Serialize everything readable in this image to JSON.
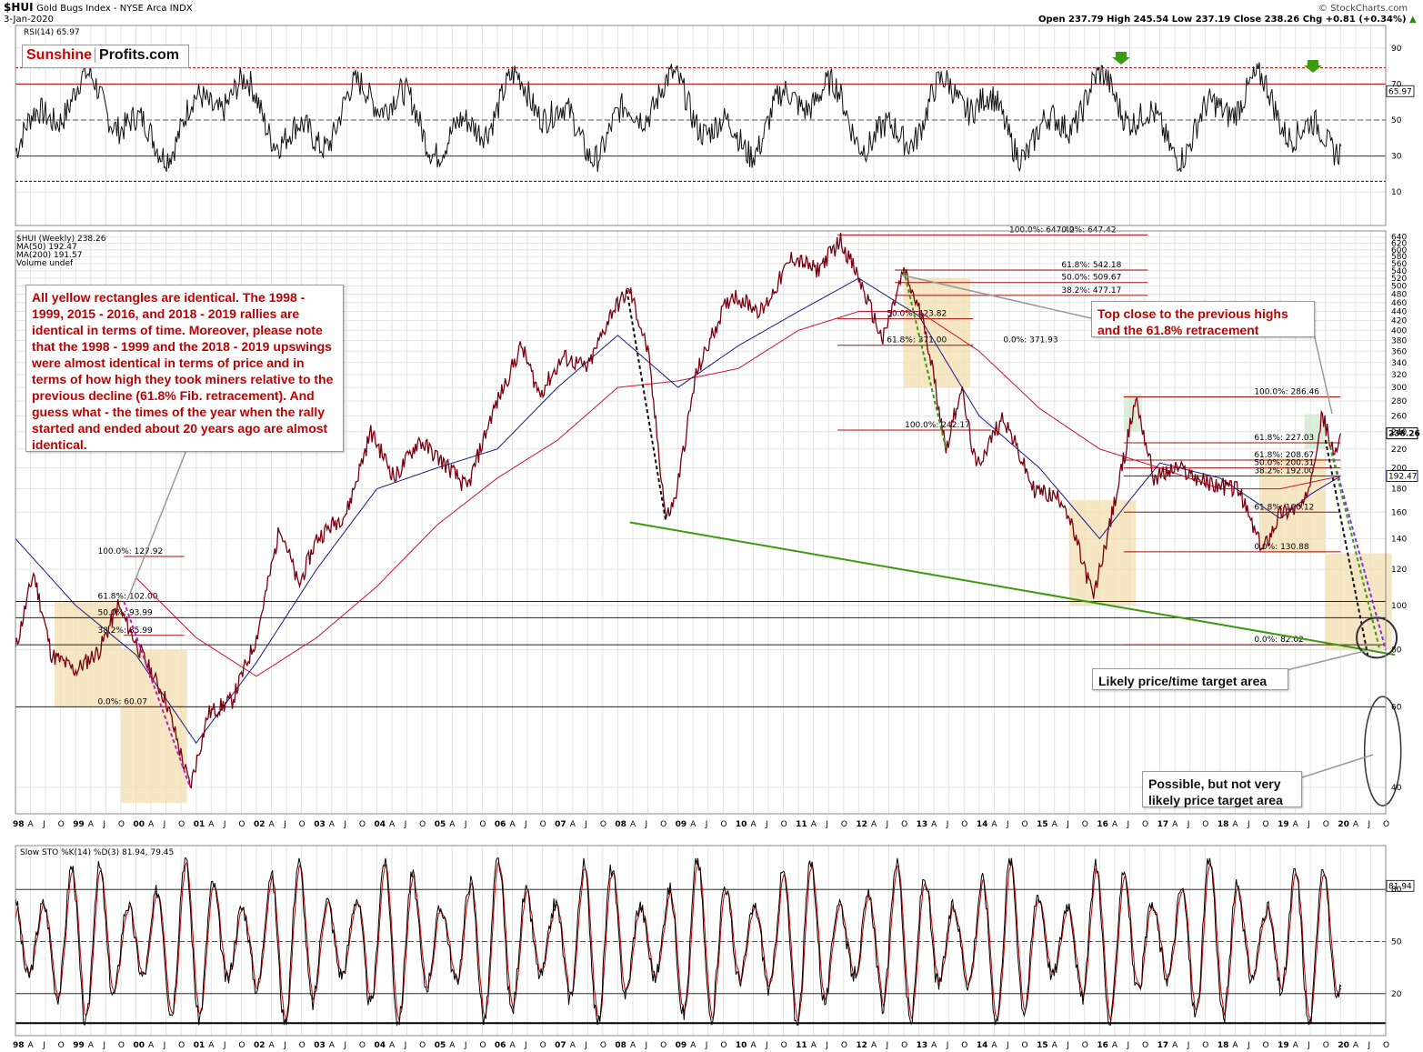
{
  "header": {
    "symbol": "$HUI",
    "name": "Gold Bugs Index - NYSE Arca INDX",
    "date": "3-Jan-2020",
    "ohlc": "Open 237.79  High 245.54  Low 237.19  Close 238.26  Chg +0.81 (+0.34%)",
    "ohlc_arrow": "▲",
    "watermark": "© StockCharts.com"
  },
  "logo": {
    "part1": "Sunshine",
    "part2": "Profits.com"
  },
  "rsi_panel": {
    "label": "RSI(14) 65.97",
    "current": "65.97",
    "ticks": [
      "90",
      "70",
      "50",
      "30",
      "10"
    ]
  },
  "price_panel": {
    "legend": [
      "$HUI (Weekly) 238.26",
      "MA(50) 192.47",
      "MA(200) 191.57",
      "Volume undef"
    ],
    "legend_colors": [
      "#000000",
      "#000080",
      "#c00000",
      "#000000"
    ],
    "last_price": "238.26",
    "ma50_value": "192.47",
    "ticks": [
      "640",
      "620",
      "600",
      "580",
      "560",
      "540",
      "520",
      "500",
      "480",
      "460",
      "440",
      "420",
      "400",
      "380",
      "360",
      "340",
      "320",
      "300",
      "280",
      "260",
      "240",
      "220",
      "200",
      "180",
      "160",
      "140",
      "120",
      "100",
      "80",
      "60",
      "40"
    ],
    "fib_labels": [
      "100.0%: 127.92",
      "61.8%: 102.00",
      "50.0%: 93.99",
      "38.2%: 85.99",
      "0.0%: 60.07",
      "0.0%: 647.42",
      "100.0%: 647.42",
      "61.8%: 542.18",
      "50.0%: 509.67",
      "38.2%: 477.17",
      "50.0%: 423.82",
      "61.8%: 371.00",
      "0.0%: 371.93",
      "100.0%: 242.17",
      "100.0%: 286.46",
      "61.8%: 227.03",
      "61.8%: 208.67",
      "50.0%: 200.31",
      "38.2%: 192.00",
      "61.8%: 160.12",
      "0.0%: 130.88",
      "0.0%: 82.02"
    ]
  },
  "sto_panel": {
    "label": "Slow STO %K(14) %D(3) 81.94, 79.45",
    "current_k": "81.94",
    "current_d": "79.45",
    "ticks": [
      "80",
      "50",
      "20"
    ]
  },
  "x_axis": [
    "98",
    "A",
    "J",
    "O",
    "99",
    "A",
    "J",
    "O",
    "00",
    "A",
    "J",
    "O",
    "01",
    "A",
    "J",
    "O",
    "02",
    "A",
    "J",
    "O",
    "03",
    "A",
    "J",
    "O",
    "04",
    "A",
    "J",
    "O",
    "05",
    "A",
    "J",
    "O",
    "06",
    "A",
    "J",
    "O",
    "07",
    "A",
    "J",
    "O",
    "08",
    "A",
    "J",
    "O",
    "09",
    "A",
    "J",
    "O",
    "10",
    "A",
    "J",
    "O",
    "11",
    "A",
    "J",
    "O",
    "12",
    "A",
    "J",
    "O",
    "13",
    "A",
    "J",
    "O",
    "14",
    "A",
    "J",
    "O",
    "15",
    "A",
    "J",
    "O",
    "16",
    "A",
    "J",
    "O",
    "17",
    "A",
    "J",
    "O",
    "18",
    "A",
    "J",
    "O",
    "19",
    "A",
    "J",
    "O",
    "20",
    "A",
    "J",
    "O"
  ],
  "callouts": {
    "main": "All yellow rectangles are identical. The 1998 - 1999, 2015 - 2016, and 2018 - 2019 rallies are identical in terms of time. Moreover, please note that the 1998 - 1999 and the 2018 - 2019 upswings were almost identical in terms of price and in terms of how high they took miners relative to the previous decline (61.8% Fib. retracement). And guess what - the times of the year when the rally started and ended about 20 years ago are almost identical.",
    "top": "Top close to the previous highs and the 61.8% retracement",
    "target": "Likely price/time target area",
    "possible": "Possible, but not very likely price target area"
  },
  "colors": {
    "price": "#7a0010",
    "ma50": "#1a1a8c",
    "ma200": "#d01030",
    "trend": "#3a9a10",
    "rect": "#f2deb0",
    "rect_green": "#cfe8cc",
    "fib_line": "#a01010",
    "rsi_band": "#b00000",
    "sto_k": "#000000",
    "sto_d": "#c00000"
  },
  "chart_data": {
    "type": "line",
    "title": "$HUI Gold Bugs Index - NYSE Arca INDX",
    "x_range": [
      "1998-01",
      "2020-10"
    ],
    "y_scale": "log",
    "ylim": [
      35,
      660
    ],
    "series": [
      {
        "name": "$HUI (Weekly)",
        "points": [
          [
            1998.0,
            80
          ],
          [
            1998.3,
            118
          ],
          [
            1998.6,
            78
          ],
          [
            1999.0,
            72
          ],
          [
            1999.4,
            80
          ],
          [
            1999.7,
            100
          ],
          [
            2000.1,
            78
          ],
          [
            2000.5,
            62
          ],
          [
            2000.9,
            40
          ],
          [
            2001.2,
            58
          ],
          [
            2001.6,
            62
          ],
          [
            2002.0,
            85
          ],
          [
            2002.4,
            150
          ],
          [
            2002.7,
            110
          ],
          [
            2003.0,
            140
          ],
          [
            2003.5,
            160
          ],
          [
            2003.9,
            240
          ],
          [
            2004.3,
            190
          ],
          [
            2004.7,
            230
          ],
          [
            2005.2,
            200
          ],
          [
            2005.5,
            180
          ],
          [
            2005.9,
            260
          ],
          [
            2006.4,
            370
          ],
          [
            2006.7,
            290
          ],
          [
            2007.1,
            350
          ],
          [
            2007.5,
            330
          ],
          [
            2007.9,
            440
          ],
          [
            2008.2,
            490
          ],
          [
            2008.5,
            360
          ],
          [
            2008.8,
            155
          ],
          [
            2008.95,
            170
          ],
          [
            2009.3,
            320
          ],
          [
            2009.7,
            430
          ],
          [
            2009.9,
            480
          ],
          [
            2010.4,
            440
          ],
          [
            2010.9,
            580
          ],
          [
            2011.3,
            540
          ],
          [
            2011.7,
            630
          ],
          [
            2012.0,
            520
          ],
          [
            2012.4,
            380
          ],
          [
            2012.75,
            540
          ],
          [
            2013.1,
            410
          ],
          [
            2013.45,
            220
          ],
          [
            2013.7,
            300
          ],
          [
            2013.95,
            200
          ],
          [
            2014.4,
            260
          ],
          [
            2014.9,
            180
          ],
          [
            2015.4,
            170
          ],
          [
            2015.9,
            104
          ],
          [
            2016.3,
            180
          ],
          [
            2016.6,
            285
          ],
          [
            2016.9,
            190
          ],
          [
            2017.3,
            200
          ],
          [
            2017.8,
            185
          ],
          [
            2018.3,
            180
          ],
          [
            2018.7,
            132
          ],
          [
            2019.0,
            160
          ],
          [
            2019.4,
            165
          ],
          [
            2019.7,
            262
          ],
          [
            2019.9,
            210
          ],
          [
            2020.0,
            238
          ]
        ]
      },
      {
        "name": "MA(50)",
        "points": [
          [
            1998.0,
            140
          ],
          [
            1999.0,
            100
          ],
          [
            2000.0,
            78
          ],
          [
            2001.0,
            50
          ],
          [
            2002.0,
            75
          ],
          [
            2003.0,
            120
          ],
          [
            2004.0,
            180
          ],
          [
            2005.0,
            200
          ],
          [
            2006.0,
            220
          ],
          [
            2007.0,
            300
          ],
          [
            2008.0,
            390
          ],
          [
            2009.0,
            300
          ],
          [
            2010.0,
            370
          ],
          [
            2011.0,
            440
          ],
          [
            2012.0,
            520
          ],
          [
            2013.0,
            430
          ],
          [
            2014.0,
            260
          ],
          [
            2015.0,
            200
          ],
          [
            2016.0,
            140
          ],
          [
            2016.5,
            170
          ],
          [
            2017.0,
            205
          ],
          [
            2018.0,
            190
          ],
          [
            2019.0,
            155
          ],
          [
            2019.5,
            175
          ],
          [
            2020.0,
            192
          ]
        ]
      },
      {
        "name": "MA(200)",
        "points": [
          [
            2000.0,
            115
          ],
          [
            2001.0,
            85
          ],
          [
            2002.0,
            70
          ],
          [
            2003.0,
            85
          ],
          [
            2004.0,
            110
          ],
          [
            2005.0,
            150
          ],
          [
            2006.0,
            190
          ],
          [
            2007.0,
            230
          ],
          [
            2008.0,
            300
          ],
          [
            2009.0,
            310
          ],
          [
            2010.0,
            330
          ],
          [
            2011.0,
            400
          ],
          [
            2012.0,
            440
          ],
          [
            2013.0,
            440
          ],
          [
            2014.0,
            360
          ],
          [
            2015.0,
            270
          ],
          [
            2016.0,
            220
          ],
          [
            2017.0,
            200
          ],
          [
            2018.0,
            180
          ],
          [
            2019.0,
            180
          ],
          [
            2020.0,
            192
          ]
        ]
      }
    ],
    "rsi_current": 65.97,
    "sto_current": [
      81.94,
      79.45
    ]
  }
}
